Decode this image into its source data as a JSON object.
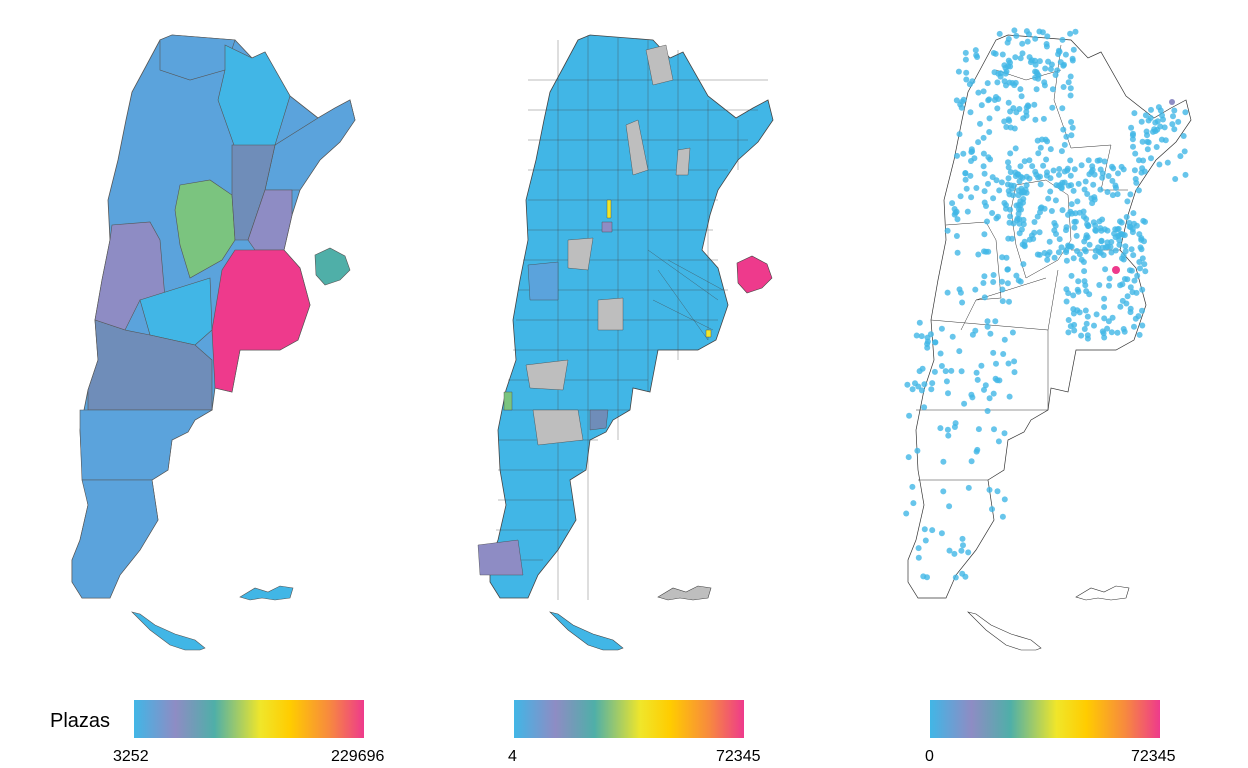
{
  "legend": {
    "title": "Plazas",
    "gradient_colors": [
      "#41B6E6",
      "#8E8CC4",
      "#4FAFA8",
      "#F0E62A",
      "#FFCC00",
      "#F7893F",
      "#EE3A8C"
    ]
  },
  "maps": [
    {
      "name": "provinces",
      "scale_min": "3252",
      "scale_max": "229696",
      "colors": {
        "default": "#5BA3DC",
        "light": "#41B6E6",
        "green": "#7BC47F",
        "pink": "#EE3A8C",
        "purple": "#8E8CC4",
        "slate": "#6F8DB9",
        "teal": "#4FAFA8"
      }
    },
    {
      "name": "departments",
      "scale_min": "4",
      "scale_max": "72345",
      "colors": {
        "default": "#41B6E6",
        "missing": "#BEBEBE",
        "pink": "#EE3A8C",
        "purple": "#8E8CC4",
        "yellow": "#F0E62A",
        "green": "#7BC47F"
      }
    },
    {
      "name": "points",
      "scale_min": "0",
      "scale_max": "72345",
      "colors": {
        "point": "#41B6E6",
        "pink": "#EE3A8C",
        "purple": "#8E8CC4"
      }
    }
  ]
}
